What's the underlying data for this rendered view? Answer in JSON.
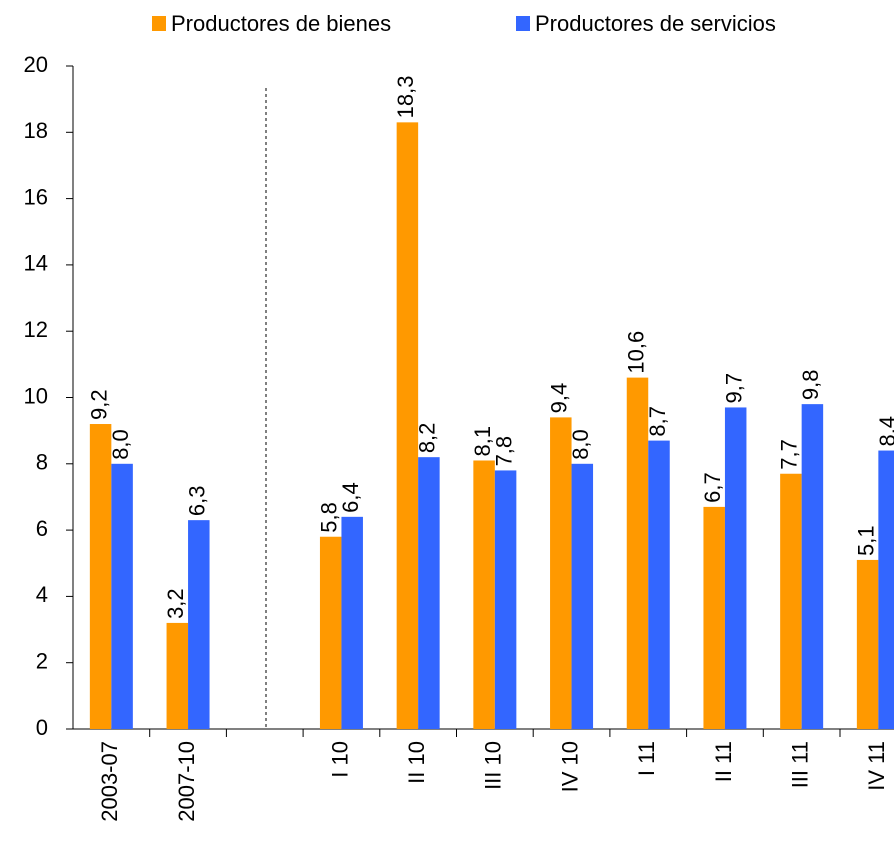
{
  "chart_data": {
    "type": "bar",
    "categories": [
      "2003-07",
      "2007-10",
      null,
      "I 10",
      "II 10",
      "III 10",
      "IV 10",
      "I 11",
      "II 11",
      "III 11",
      "IV 11"
    ],
    "series": [
      {
        "name": "Productores de bienes",
        "color": "#ff9900",
        "values": [
          9.2,
          3.2,
          null,
          5.8,
          18.3,
          8.1,
          9.4,
          10.6,
          6.7,
          7.7,
          5.1
        ],
        "value_labels": [
          "9,2",
          "3,2",
          null,
          "5,8",
          "18,3",
          "8,1",
          "9,4",
          "10,6",
          "6,7",
          "7,7",
          "5,1"
        ]
      },
      {
        "name": "Productores de servicios",
        "color": "#3366ff",
        "values": [
          8.0,
          6.3,
          null,
          6.4,
          8.2,
          7.8,
          8.0,
          8.7,
          9.7,
          9.8,
          8.4
        ],
        "value_labels": [
          "8,0",
          "6,3",
          null,
          "6,4",
          "8,2",
          "7,8",
          "8,0",
          "8,7",
          "9,7",
          "9,8",
          "8,4"
        ]
      }
    ],
    "ylim": [
      0,
      20
    ],
    "yticks": [
      0,
      2,
      4,
      6,
      8,
      10,
      12,
      14,
      16,
      18,
      20
    ],
    "legend": "top"
  }
}
